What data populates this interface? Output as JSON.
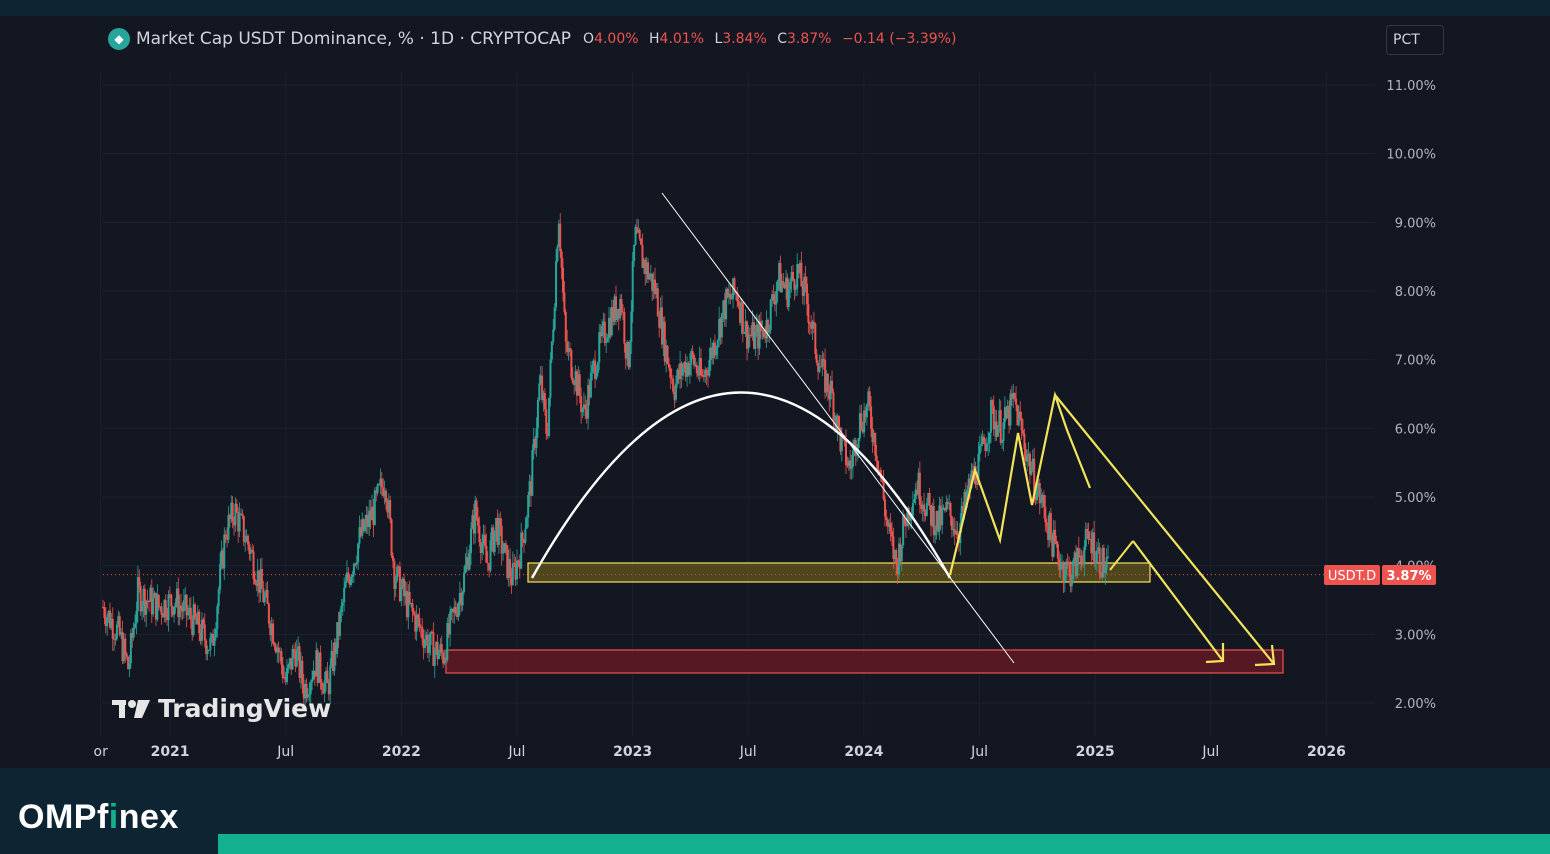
{
  "header": {
    "title": "Market Cap USDT Dominance, % · 1D · CRYPTOCAP",
    "ohlc": [
      {
        "key": "O",
        "value": "4.00%"
      },
      {
        "key": "H",
        "value": "4.01%"
      },
      {
        "key": "L",
        "value": "3.84%"
      },
      {
        "key": "C",
        "value": "3.87%"
      }
    ],
    "change": "−0.14 (−3.39%)"
  },
  "pct_button": "PCT",
  "price_tag": {
    "symbol": "USDT.D",
    "value": "3.87%"
  },
  "watermark": "TradingView",
  "footer": {
    "brand_pre": "OMP",
    "brand_f": "f",
    "brand_i": "i",
    "brand_post": "nex"
  },
  "colors": {
    "background": "#131722",
    "up": "#26a69a",
    "down": "#ef5350",
    "annotation_yellow": "#f2e45a",
    "accent": "#12b08f"
  },
  "chart_data": {
    "type": "candlestick",
    "y_ticks": [
      "2.00%",
      "3.00%",
      "4.00%",
      "5.00%",
      "6.00%",
      "7.00%",
      "8.00%",
      "9.00%",
      "10.00%",
      "11.00%"
    ],
    "ylim": [
      1.8,
      11.3
    ],
    "x_ticks": [
      {
        "label": "or",
        "t": 2020.7
      },
      {
        "label": "2021",
        "t": 2021.0
      },
      {
        "label": "Jul",
        "t": 2021.5
      },
      {
        "label": "2022",
        "t": 2022.0
      },
      {
        "label": "Jul",
        "t": 2022.5
      },
      {
        "label": "2023",
        "t": 2023.0
      },
      {
        "label": "Jul",
        "t": 2023.5
      },
      {
        "label": "2024",
        "t": 2024.0
      },
      {
        "label": "Jul",
        "t": 2024.5
      },
      {
        "label": "2025",
        "t": 2025.0
      },
      {
        "label": "Jul",
        "t": 2025.5
      },
      {
        "label": "2026",
        "t": 2026.0
      }
    ],
    "xlim": [
      2020.71,
      2026.21
    ],
    "series": [
      {
        "values": [
          [
            2020.71,
            3.4
          ],
          [
            2020.78,
            3.0
          ],
          [
            2020.82,
            2.5
          ],
          [
            2020.86,
            3.6
          ],
          [
            2020.95,
            3.4
          ],
          [
            2021.02,
            3.5
          ],
          [
            2021.1,
            3.2
          ],
          [
            2021.18,
            2.8
          ],
          [
            2021.24,
            4.5
          ],
          [
            2021.28,
            4.8
          ],
          [
            2021.34,
            4.3
          ],
          [
            2021.4,
            3.6
          ],
          [
            2021.46,
            2.9
          ],
          [
            2021.5,
            2.3
          ],
          [
            2021.54,
            2.8
          ],
          [
            2021.58,
            2.2
          ],
          [
            2021.63,
            2.6
          ],
          [
            2021.68,
            2.2
          ],
          [
            2021.72,
            2.9
          ],
          [
            2021.76,
            3.7
          ],
          [
            2021.82,
            4.4
          ],
          [
            2021.88,
            4.8
          ],
          [
            2021.93,
            5.3
          ],
          [
            2021.97,
            3.9
          ],
          [
            2022.03,
            3.4
          ],
          [
            2022.08,
            3.1
          ],
          [
            2022.13,
            2.8
          ],
          [
            2022.18,
            2.7
          ],
          [
            2022.22,
            3.2
          ],
          [
            2022.27,
            3.8
          ],
          [
            2022.32,
            4.8
          ],
          [
            2022.37,
            4.0
          ],
          [
            2022.41,
            4.6
          ],
          [
            2022.45,
            4.1
          ],
          [
            2022.48,
            3.8
          ],
          [
            2022.52,
            4.3
          ],
          [
            2022.56,
            5.2
          ],
          [
            2022.6,
            6.7
          ],
          [
            2022.63,
            5.9
          ],
          [
            2022.66,
            7.8
          ],
          [
            2022.68,
            9.2
          ],
          [
            2022.71,
            7.2
          ],
          [
            2022.75,
            6.8
          ],
          [
            2022.79,
            6.2
          ],
          [
            2022.84,
            7.0
          ],
          [
            2022.89,
            7.5
          ],
          [
            2022.95,
            7.9
          ],
          [
            2022.98,
            6.9
          ],
          [
            2023.01,
            8.8
          ],
          [
            2023.05,
            8.4
          ],
          [
            2023.1,
            8.0
          ],
          [
            2023.14,
            7.2
          ],
          [
            2023.18,
            6.6
          ],
          [
            2023.22,
            6.9
          ],
          [
            2023.26,
            7.0
          ],
          [
            2023.3,
            6.7
          ],
          [
            2023.35,
            7.2
          ],
          [
            2023.4,
            7.8
          ],
          [
            2023.45,
            8.0
          ],
          [
            2023.49,
            7.4
          ],
          [
            2023.53,
            7.3
          ],
          [
            2023.58,
            7.5
          ],
          [
            2023.63,
            8.2
          ],
          [
            2023.67,
            8.0
          ],
          [
            2023.71,
            8.3
          ],
          [
            2023.75,
            7.9
          ],
          [
            2023.79,
            7.2
          ],
          [
            2023.82,
            6.8
          ],
          [
            2023.86,
            6.5
          ],
          [
            2023.9,
            5.8
          ],
          [
            2023.94,
            5.4
          ],
          [
            2023.98,
            6.1
          ],
          [
            2024.02,
            6.3
          ],
          [
            2024.06,
            5.6
          ],
          [
            2024.1,
            4.6
          ],
          [
            2024.14,
            4.0
          ],
          [
            2024.18,
            4.7
          ],
          [
            2024.23,
            5.2
          ],
          [
            2024.28,
            4.8
          ],
          [
            2024.32,
            4.6
          ],
          [
            2024.36,
            4.8
          ],
          [
            2024.41,
            4.5
          ],
          [
            2024.46,
            5.2
          ],
          [
            2024.5,
            5.5
          ],
          [
            2024.55,
            6.2
          ],
          [
            2024.6,
            6.0
          ],
          [
            2024.65,
            6.4
          ],
          [
            2024.7,
            5.7
          ],
          [
            2024.74,
            5.2
          ],
          [
            2024.78,
            4.8
          ],
          [
            2024.82,
            4.3
          ],
          [
            2024.86,
            4.0
          ],
          [
            2024.9,
            3.9
          ],
          [
            2024.94,
            4.2
          ],
          [
            2024.98,
            4.4
          ],
          [
            2025.02,
            4.1
          ],
          [
            2025.06,
            3.87
          ]
        ]
      }
    ]
  }
}
